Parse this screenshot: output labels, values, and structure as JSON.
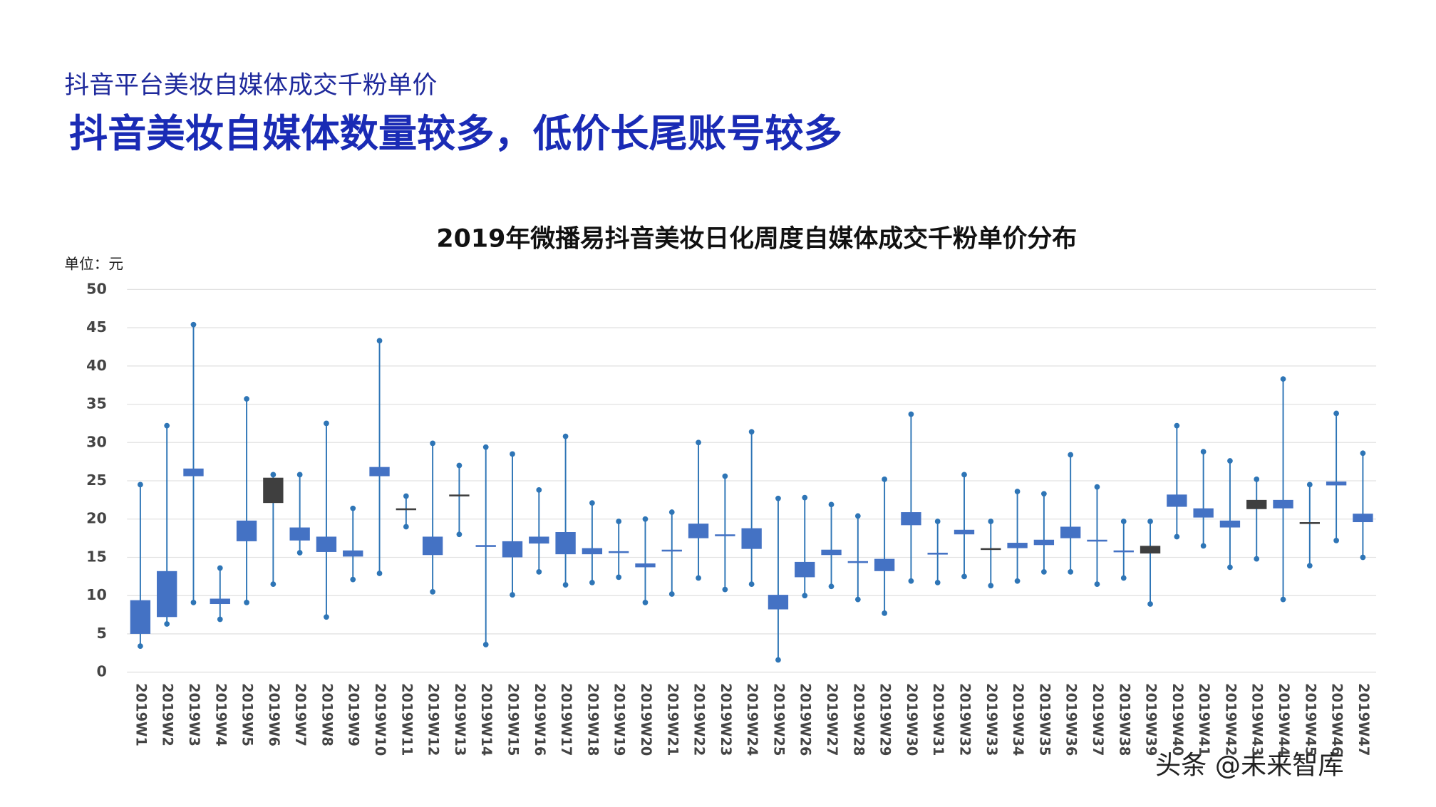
{
  "header": {
    "subtitle": "抖音平台美妆自媒体成交千粉单价",
    "title": "抖音美妆自媒体数量较多，低价长尾账号较多"
  },
  "footer": {
    "source": "头条 @未来智库"
  },
  "chart_data": {
    "type": "candlestick",
    "title": "2019年微播易抖音美妆日化周度自媒体成交千粉单价分布",
    "unit_label": "单位：元",
    "categories": [
      "2019W1",
      "2019W2",
      "2019W3",
      "2019W4",
      "2019W5",
      "2019W6",
      "2019W7",
      "2019W8",
      "2019W9",
      "2019W10",
      "2019W11",
      "2019W12",
      "2019W13",
      "2019W14",
      "2019W15",
      "2019W16",
      "2019W17",
      "2019W18",
      "2019W19",
      "2019W20",
      "2019W21",
      "2019W22",
      "2019W23",
      "2019W24",
      "2019W25",
      "2019W26",
      "2019W27",
      "2019W28",
      "2019W29",
      "2019W30",
      "2019W31",
      "2019W32",
      "2019W33",
      "2019W34",
      "2019W35",
      "2019W36",
      "2019W37",
      "2019W38",
      "2019W39",
      "2019W40",
      "2019W41",
      "2019W42",
      "2019W43",
      "2019W44",
      "2019W45",
      "2019W46",
      "2019W47"
    ],
    "open": [
      5.0,
      7.2,
      25.6,
      8.9,
      17.1,
      25.4,
      17.2,
      15.7,
      15.1,
      25.6,
      21.4,
      15.3,
      23.2,
      16.6,
      15.0,
      16.8,
      15.4,
      15.4,
      15.7,
      13.7,
      16.0,
      17.5,
      18.0,
      16.1,
      8.2,
      12.4,
      15.3,
      14.5,
      13.2,
      19.2,
      15.6,
      18.0,
      16.2,
      16.2,
      16.6,
      17.5,
      17.1,
      15.9,
      16.5,
      21.6,
      20.2,
      18.9,
      22.5,
      21.4,
      19.6,
      24.4,
      19.6
    ],
    "high": [
      24.5,
      32.2,
      45.4,
      13.6,
      35.7,
      25.8,
      25.8,
      32.5,
      21.4,
      43.3,
      23.0,
      29.9,
      27.0,
      29.4,
      28.5,
      23.8,
      30.8,
      22.1,
      19.7,
      20.0,
      20.9,
      30.0,
      25.6,
      31.4,
      22.7,
      22.8,
      21.9,
      20.4,
      25.2,
      33.7,
      19.7,
      25.8,
      19.7,
      23.6,
      23.3,
      28.4,
      24.2,
      19.7,
      19.7,
      32.2,
      28.8,
      27.6,
      25.2,
      38.3,
      24.5,
      33.8,
      28.6
    ],
    "low": [
      3.4,
      6.3,
      9.1,
      6.9,
      9.1,
      11.5,
      15.6,
      7.2,
      12.1,
      12.9,
      19.0,
      10.5,
      18.0,
      3.6,
      10.1,
      13.1,
      11.4,
      11.7,
      12.4,
      9.1,
      10.2,
      12.3,
      10.8,
      11.5,
      1.6,
      10.0,
      11.2,
      9.5,
      7.7,
      11.9,
      11.7,
      12.5,
      11.3,
      11.9,
      13.1,
      13.1,
      11.5,
      12.3,
      8.9,
      17.7,
      16.5,
      13.7,
      14.8,
      9.5,
      13.9,
      17.2,
      15.0
    ],
    "close": [
      9.4,
      13.2,
      26.6,
      9.6,
      19.8,
      22.1,
      18.9,
      17.7,
      15.9,
      26.8,
      21.3,
      17.7,
      23.0,
      16.6,
      17.1,
      17.7,
      18.3,
      16.2,
      15.8,
      14.2,
      16.0,
      19.4,
      18.0,
      18.8,
      10.1,
      14.4,
      16.0,
      14.5,
      14.8,
      20.9,
      15.6,
      18.6,
      16.1,
      16.9,
      17.3,
      19.0,
      17.3,
      15.9,
      15.5,
      23.2,
      21.4,
      19.8,
      21.3,
      22.5,
      19.5,
      24.9,
      20.7
    ],
    "up_color": "#4472c4",
    "down_color": "#3f3f3f",
    "whisker_color": "#2e75b6",
    "ylim": [
      0,
      50
    ],
    "yticks": [
      0,
      5,
      10,
      15,
      20,
      25,
      30,
      35,
      40,
      45,
      50
    ],
    "grid": true
  }
}
